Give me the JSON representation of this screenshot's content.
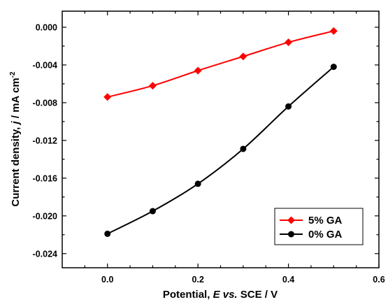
{
  "chart_data": {
    "type": "line",
    "xlabel_parts": [
      "Potential, ",
      "E vs.",
      " SCE / V"
    ],
    "ylabel_parts": [
      "Current density, ",
      "j",
      " / mA cm",
      "-2"
    ],
    "xlim": [
      -0.1,
      0.6
    ],
    "ylim": [
      -0.0255,
      0.0017
    ],
    "x_ticks": [
      0.0,
      0.2,
      0.4,
      0.6
    ],
    "x_tick_labels": [
      "0.0",
      "0.2",
      "0.4",
      "0.6"
    ],
    "y_ticks": [
      0.0,
      -0.004,
      -0.008,
      -0.012,
      -0.016,
      -0.02,
      -0.024
    ],
    "y_tick_labels": [
      "0.000",
      "-0.004",
      "-0.008",
      "-0.012",
      "-0.016",
      "-0.020",
      "-0.024"
    ],
    "grid": false,
    "legend_position": "bottom-right",
    "series": [
      {
        "name": "5% GA",
        "color": "#ff0000",
        "marker": "diamond",
        "x": [
          0.0,
          0.1,
          0.2,
          0.3,
          0.4,
          0.5
        ],
        "y": [
          -0.0074,
          -0.0062,
          -0.0046,
          -0.0031,
          -0.0016,
          -0.0004
        ]
      },
      {
        "name": "0% GA",
        "color": "#000000",
        "marker": "circle",
        "x": [
          0.0,
          0.1,
          0.2,
          0.3,
          0.4,
          0.5
        ],
        "y": [
          -0.0219,
          -0.0195,
          -0.0166,
          -0.0129,
          -0.0084,
          -0.0042
        ]
      }
    ]
  }
}
